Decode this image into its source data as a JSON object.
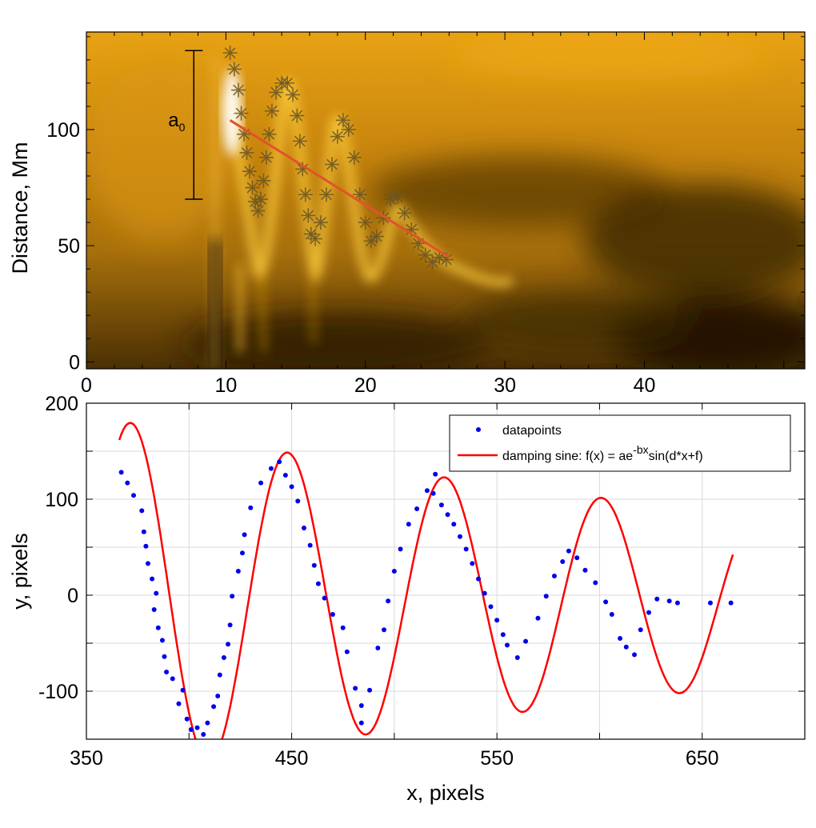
{
  "chart_data": [
    {
      "type": "heatmap",
      "ylabel": "Distance, Mm",
      "xlabel": "",
      "xlim": [
        0,
        51.5
      ],
      "ylim": [
        -3,
        142
      ],
      "x_ticks": [
        0,
        10,
        20,
        30,
        40
      ],
      "x_tick_labels": [
        "0",
        "10",
        "20",
        "30",
        "40"
      ],
      "y_ticks": [
        0,
        50,
        100
      ],
      "y_tick_labels": [
        "0",
        "50",
        "100"
      ],
      "colormap": [
        "#000000",
        "#7a4a06",
        "#d8930f",
        "#fbb91c",
        "#ffffff"
      ],
      "annotation": {
        "text": "a",
        "subscript": "0",
        "x": 7.7,
        "y_top": 134,
        "y_bottom": 70
      },
      "markers": {
        "symbol": "asterisk",
        "color": "#6a5624",
        "points": [
          [
            10.3,
            133
          ],
          [
            10.6,
            126
          ],
          [
            10.9,
            117
          ],
          [
            11.1,
            107
          ],
          [
            11.3,
            98
          ],
          [
            11.5,
            90
          ],
          [
            11.7,
            82
          ],
          [
            11.9,
            75
          ],
          [
            12.1,
            69
          ],
          [
            12.3,
            65
          ],
          [
            12.5,
            70
          ],
          [
            12.7,
            78
          ],
          [
            12.9,
            88
          ],
          [
            13.1,
            98
          ],
          [
            13.3,
            108
          ],
          [
            13.6,
            116
          ],
          [
            14.0,
            120
          ],
          [
            14.4,
            120
          ],
          [
            14.8,
            115
          ],
          [
            15.1,
            106
          ],
          [
            15.3,
            95
          ],
          [
            15.5,
            83
          ],
          [
            15.7,
            72
          ],
          [
            15.9,
            63
          ],
          [
            16.1,
            55
          ],
          [
            16.4,
            53
          ],
          [
            16.8,
            60
          ],
          [
            17.2,
            72
          ],
          [
            17.6,
            85
          ],
          [
            18.0,
            97
          ],
          [
            18.4,
            104
          ],
          [
            18.8,
            100
          ],
          [
            19.2,
            88
          ],
          [
            19.6,
            72
          ],
          [
            20.0,
            60
          ],
          [
            20.4,
            52
          ],
          [
            20.8,
            54
          ],
          [
            21.3,
            62
          ],
          [
            21.8,
            70
          ],
          [
            22.3,
            71
          ],
          [
            22.8,
            64
          ],
          [
            23.3,
            57
          ],
          [
            23.8,
            51
          ],
          [
            24.3,
            46
          ],
          [
            24.8,
            43
          ],
          [
            25.3,
            45
          ],
          [
            25.8,
            44
          ]
        ]
      },
      "trend_line": {
        "color": "#e2522a",
        "from": [
          10.3,
          104
        ],
        "to": [
          26.0,
          45
        ]
      }
    },
    {
      "type": "line",
      "xlabel": "x, pixels",
      "ylabel": "y, pixels",
      "xlim": [
        350,
        700
      ],
      "ylim": [
        -150,
        200
      ],
      "x_ticks": [
        350,
        450,
        550,
        650
      ],
      "x_tick_labels": [
        "350",
        "450",
        "550",
        "650"
      ],
      "y_ticks": [
        -100,
        0,
        100,
        200
      ],
      "y_tick_labels": [
        "-100",
        "0",
        "100",
        "200"
      ],
      "grid": true,
      "legend_placement": "top-right",
      "series": [
        {
          "name": "datapoints",
          "style": "dots",
          "color": "#0000ee",
          "points": [
            [
              367,
              128
            ],
            [
              370,
              117
            ],
            [
              373,
              104
            ],
            [
              377,
              88
            ],
            [
              378,
              66
            ],
            [
              379,
              51
            ],
            [
              380,
              33
            ],
            [
              382,
              17
            ],
            [
              383,
              -15
            ],
            [
              384,
              2
            ],
            [
              385,
              -34
            ],
            [
              387,
              -47
            ],
            [
              388,
              -64
            ],
            [
              389,
              -80
            ],
            [
              392,
              -87
            ],
            [
              395,
              -113
            ],
            [
              397,
              -99
            ],
            [
              399,
              -129
            ],
            [
              401,
              -140
            ],
            [
              404,
              -138
            ],
            [
              407,
              -145
            ],
            [
              409,
              -133
            ],
            [
              412,
              -116
            ],
            [
              414,
              -105
            ],
            [
              415,
              -83
            ],
            [
              417,
              -65
            ],
            [
              419,
              -51
            ],
            [
              420,
              -31
            ],
            [
              421,
              -1
            ],
            [
              424,
              25
            ],
            [
              426,
              44
            ],
            [
              427,
              63
            ],
            [
              430,
              91
            ],
            [
              435,
              117
            ],
            [
              440,
              132
            ],
            [
              444,
              139
            ],
            [
              447,
              125
            ],
            [
              450,
              113
            ],
            [
              453,
              98
            ],
            [
              456,
              70
            ],
            [
              459,
              52
            ],
            [
              461,
              31
            ],
            [
              463,
              12
            ],
            [
              466,
              -3
            ],
            [
              470,
              -20
            ],
            [
              475,
              -34
            ],
            [
              477,
              -59
            ],
            [
              481,
              -97
            ],
            [
              484,
              -115
            ],
            [
              484,
              -133
            ],
            [
              488,
              -99
            ],
            [
              492,
              -55
            ],
            [
              495,
              -36
            ],
            [
              497,
              -6
            ],
            [
              500,
              25
            ],
            [
              503,
              48
            ],
            [
              507,
              74
            ],
            [
              511,
              90
            ],
            [
              516,
              109
            ],
            [
              519,
              106
            ],
            [
              520,
              126
            ],
            [
              523,
              94
            ],
            [
              526,
              84
            ],
            [
              529,
              74
            ],
            [
              532,
              61
            ],
            [
              535,
              48
            ],
            [
              538,
              33
            ],
            [
              541,
              17
            ],
            [
              544,
              2
            ],
            [
              547,
              -12
            ],
            [
              550,
              -26
            ],
            [
              553,
              -41
            ],
            [
              555,
              -52
            ],
            [
              560,
              -65
            ],
            [
              564,
              -48
            ],
            [
              570,
              -24
            ],
            [
              574,
              -1
            ],
            [
              578,
              20
            ],
            [
              582,
              35
            ],
            [
              585,
              46
            ],
            [
              589,
              39
            ],
            [
              593,
              26
            ],
            [
              598,
              13
            ],
            [
              603,
              -7
            ],
            [
              606,
              -20
            ],
            [
              610,
              -45
            ],
            [
              613,
              -54
            ],
            [
              617,
              -62
            ],
            [
              620,
              -36
            ],
            [
              624,
              -18
            ],
            [
              628,
              -4
            ],
            [
              634,
              -6
            ],
            [
              638,
              -8
            ],
            [
              654,
              -8
            ],
            [
              664,
              -8
            ]
          ]
        },
        {
          "name": "damping sine: f(x) = ae-bxsin(d*x+f)",
          "style": "line",
          "color": "#ff0000",
          "model": {
            "amplitude": 187,
            "decay": 0.0024,
            "frequency": 0.0822,
            "x0": 366,
            "phase": 1.1,
            "offset": -5
          },
          "x_range": [
            366,
            665
          ]
        }
      ],
      "legend": {
        "entries": [
          "datapoints",
          "damping sine: f(x) = ae-bxsin(d*x+f)"
        ],
        "label_parts": {
          "pre": "damping sine: f(x) = ae",
          "sup": "-bx",
          "post": "sin(d*x+f)"
        }
      }
    }
  ]
}
